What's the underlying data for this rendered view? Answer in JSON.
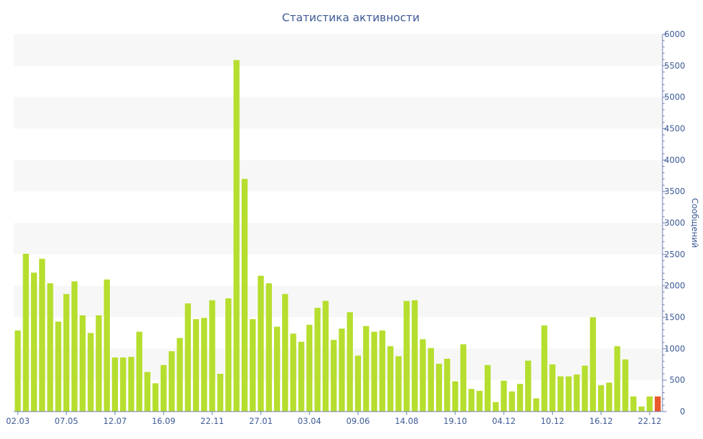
{
  "colors": {
    "bar": "#b6de2e",
    "highlight_bar": "#e8582a",
    "text": "#3d5a96",
    "axis": "#6b7ab0",
    "band": "#f7f7f7"
  },
  "chart_data": {
    "type": "bar",
    "title": "Статистика активности",
    "ylabel": "Сообщений",
    "xlabel": "",
    "y_axis_side": "right",
    "ylim": [
      0,
      6000
    ],
    "y_ticks": [
      0,
      500,
      1000,
      1500,
      2000,
      2500,
      3000,
      3500,
      4000,
      4500,
      5000,
      5500,
      6000
    ],
    "grid": "alternating horizontal bands",
    "x_tick_labels": [
      {
        "label": "02.03",
        "index": 0
      },
      {
        "label": "07.05",
        "index": 6
      },
      {
        "label": "12.07",
        "index": 12
      },
      {
        "label": "16.09",
        "index": 18
      },
      {
        "label": "22.11",
        "index": 24
      },
      {
        "label": "27.01",
        "index": 30
      },
      {
        "label": "03.04",
        "index": 36
      },
      {
        "label": "09.06",
        "index": 42
      },
      {
        "label": "14.08",
        "index": 48
      },
      {
        "label": "19.10",
        "index": 54
      },
      {
        "label": "04.12",
        "index": 60
      },
      {
        "label": "10.12",
        "index": 66
      },
      {
        "label": "16.12",
        "index": 72
      },
      {
        "label": "22.12",
        "index": 78
      }
    ],
    "highlight_index": 79,
    "values": [
      1290,
      2510,
      2210,
      2430,
      2040,
      1430,
      1870,
      2070,
      1530,
      1250,
      1530,
      2100,
      860,
      860,
      870,
      1270,
      630,
      450,
      740,
      960,
      1170,
      1720,
      1470,
      1490,
      1770,
      600,
      1800,
      5590,
      3700,
      1470,
      2160,
      2040,
      1350,
      1870,
      1240,
      1110,
      1380,
      1650,
      1760,
      1140,
      1320,
      1580,
      890,
      1360,
      1270,
      1290,
      1040,
      880,
      1760,
      1770,
      1150,
      1010,
      760,
      840,
      480,
      1070,
      360,
      330,
      740,
      150,
      490,
      320,
      440,
      810,
      210,
      1370,
      750,
      560,
      560,
      590,
      730,
      1500,
      420,
      460,
      1040,
      830,
      240,
      80,
      240,
      240
    ]
  }
}
